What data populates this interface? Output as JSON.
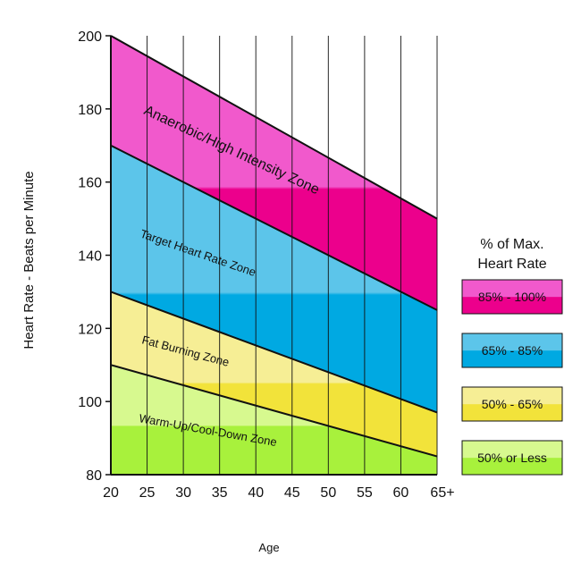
{
  "chart_data": {
    "type": "area",
    "title": "",
    "xlabel": "Age",
    "ylabel": "Heart Rate - Beats per Minute",
    "x_ticks": [
      "20",
      "25",
      "30",
      "35",
      "40",
      "45",
      "50",
      "55",
      "60",
      "65+"
    ],
    "y_ticks": [
      80,
      100,
      120,
      140,
      160,
      180,
      200
    ],
    "xlim": [
      20,
      65
    ],
    "ylim": [
      80,
      200
    ],
    "grid": "vertical",
    "boundary_lines": [
      {
        "name": "Maximum heart rate",
        "x": [
          20,
          65
        ],
        "y": [
          200,
          150
        ]
      },
      {
        "name": "85% of maximum",
        "x": [
          20,
          65
        ],
        "y": [
          170,
          125
        ]
      },
      {
        "name": "65% of maximum",
        "x": [
          20,
          65
        ],
        "y": [
          130,
          97
        ]
      },
      {
        "name": "50% of maximum",
        "x": [
          20,
          65
        ],
        "y": [
          110,
          85
        ]
      }
    ],
    "zones": [
      {
        "label": "Anaerobic/High Intensity Zone",
        "legend": "85% - 100%",
        "upper": [
          200,
          150
        ],
        "lower": [
          170,
          125
        ],
        "color": "#ec008c",
        "light": "#f159cc"
      },
      {
        "label": "Target Heart Rate Zone",
        "legend": "65% - 85%",
        "upper": [
          170,
          125
        ],
        "lower": [
          130,
          97
        ],
        "color": "#00a9e2",
        "light": "#5cc5ea"
      },
      {
        "label": "Fat Burning Zone",
        "legend": "50% - 65%",
        "upper": [
          130,
          97
        ],
        "lower": [
          110,
          85
        ],
        "color": "#f2e33a",
        "light": "#f6ee95"
      },
      {
        "label": "Warm-Up/Cool-Down Zone",
        "legend": "50% or Less",
        "upper": [
          110,
          85
        ],
        "lower": [
          80,
          80
        ],
        "color": "#a8f13c",
        "light": "#d7f98f"
      }
    ],
    "legend": {
      "title_line1": "% of Max.",
      "title_line2": "Heart Rate",
      "placement": "right"
    }
  }
}
